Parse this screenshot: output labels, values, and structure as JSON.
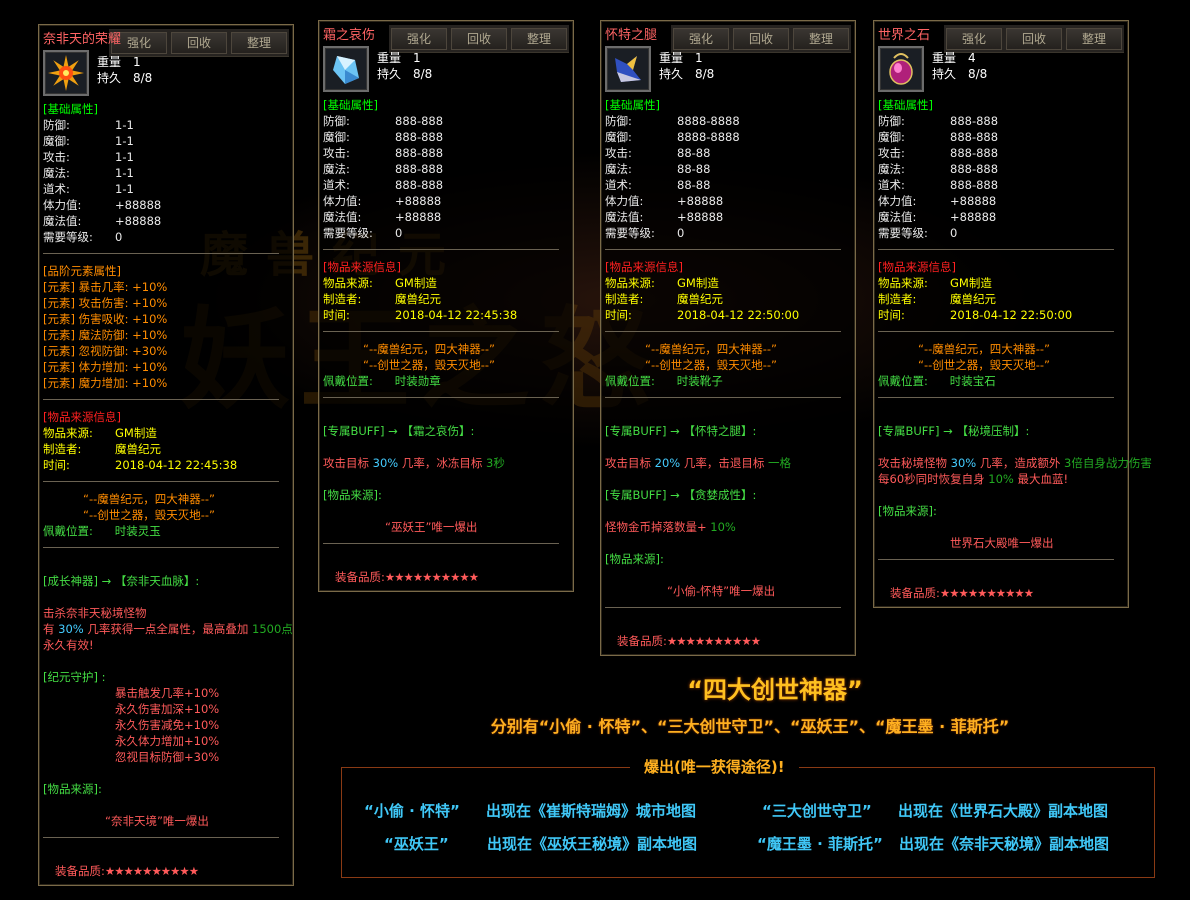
{
  "watermark": {
    "line1": "魔兽纪元",
    "line2": "妖王之怒"
  },
  "colors": {
    "background": "#000000",
    "title": "#ff6464",
    "header_green": "#00ff00",
    "stars": "#ff5a5a",
    "gold": "#ffc020",
    "cyan": "#40c8f8"
  },
  "buttons": [
    "强化",
    "回收",
    "整理"
  ],
  "panels": [
    {
      "title": "奈非天的荣耀",
      "icon": "sun-amulet-icon",
      "weight_label": "重量",
      "weight": "1",
      "durability_label": "持久",
      "durability": "8/8",
      "lines": [
        {
          "seg": [
            [
              "[基础属性]",
              "green"
            ]
          ]
        },
        {
          "kv": [
            "防御:",
            "1-1"
          ]
        },
        {
          "kv": [
            "魔御:",
            "1-1"
          ]
        },
        {
          "kv": [
            "攻击:",
            "1-1"
          ]
        },
        {
          "kv": [
            "魔法:",
            "1-1"
          ]
        },
        {
          "kv": [
            "道术:",
            "1-1"
          ]
        },
        {
          "kv": [
            "体力值:",
            "+88888"
          ]
        },
        {
          "kv": [
            "魔法值:",
            "+88888"
          ]
        },
        {
          "kv": [
            "需要等级:",
            "0"
          ]
        },
        {
          "div": 1
        },
        {
          "seg": [
            [
              "[品阶元素属性]",
              "orange"
            ]
          ]
        },
        {
          "seg": [
            [
              "[元素] 暴击几率: +10%",
              "orange"
            ]
          ]
        },
        {
          "seg": [
            [
              "[元素] 攻击伤害: +10%",
              "orange"
            ]
          ]
        },
        {
          "seg": [
            [
              "[元素] 伤害吸收: +10%",
              "orange"
            ]
          ]
        },
        {
          "seg": [
            [
              "[元素] 魔法防御: +10%",
              "orange"
            ]
          ]
        },
        {
          "seg": [
            [
              "[元素] 忽视防御: +30%",
              "orange"
            ]
          ]
        },
        {
          "seg": [
            [
              "[元素] 体力增加: +10%",
              "orange"
            ]
          ]
        },
        {
          "seg": [
            [
              "[元素] 魔力增加: +10%",
              "orange"
            ]
          ]
        },
        {
          "div": 1
        },
        {
          "seg": [
            [
              "[物品来源信息]",
              "red"
            ]
          ]
        },
        {
          "kvy": [
            "物品来源:",
            "GM制造"
          ]
        },
        {
          "kvy": [
            "制造者:",
            "魔兽纪元"
          ]
        },
        {
          "kvy": [
            "时间:",
            "2018-04-12 22:45:38"
          ]
        },
        {
          "div": 1
        },
        {
          "ind": 40,
          "seg": [
            [
              "“--魔兽纪元，四大神器--”",
              "orange"
            ]
          ]
        },
        {
          "ind": 40,
          "seg": [
            [
              "“--创世之器，毁天灭地--”",
              "orange"
            ]
          ]
        },
        {
          "seg": [
            [
              "佩戴位置:      时装灵玉",
              "lgreen"
            ]
          ]
        },
        {
          "div": 1
        },
        {
          "gap": 1
        },
        {
          "seg": [
            [
              "[成长神器] → 【奈非天血脉】:",
              "lgreen"
            ]
          ]
        },
        {
          "gap": 1
        },
        {
          "seg": [
            [
              "击杀奈非天秘境怪物",
              "pink"
            ]
          ]
        },
        {
          "seg": [
            [
              "有 ",
              "pink"
            ],
            [
              "30%",
              "cyan"
            ],
            [
              " 几率获得一点全属性，最高叠加 ",
              "pink"
            ],
            [
              "1500点",
              "dgreen"
            ]
          ]
        },
        {
          "seg": [
            [
              "永久有效!",
              "pink"
            ]
          ]
        },
        {
          "gap": 1
        },
        {
          "seg": [
            [
              "[纪元守护] :",
              "lgreen"
            ]
          ]
        },
        {
          "ind": 72,
          "seg": [
            [
              "暴击触发几率+10%",
              "pink"
            ]
          ]
        },
        {
          "ind": 72,
          "seg": [
            [
              "永久伤害加深+10%",
              "pink"
            ]
          ]
        },
        {
          "ind": 72,
          "seg": [
            [
              "永久伤害减免+10%",
              "pink"
            ]
          ]
        },
        {
          "ind": 72,
          "seg": [
            [
              "永久体力增加+10%",
              "pink"
            ]
          ]
        },
        {
          "ind": 72,
          "seg": [
            [
              "忽视目标防御+30%",
              "pink"
            ]
          ]
        },
        {
          "gap": 1
        },
        {
          "seg": [
            [
              "[物品来源]:",
              "lgreen"
            ]
          ]
        },
        {
          "gap": 1
        },
        {
          "ind": 62,
          "seg": [
            [
              "“奈非天境”唯一爆出",
              "pink"
            ]
          ]
        },
        {
          "div": 1
        },
        {
          "gap": 1
        }
      ],
      "quality_label": "装备品质:",
      "stars": 10
    },
    {
      "title": "霜之哀伤",
      "icon": "ice-crystal-icon",
      "weight_label": "重量",
      "weight": "1",
      "durability_label": "持久",
      "durability": "8/8",
      "lines": [
        {
          "seg": [
            [
              "[基础属性]",
              "green"
            ]
          ]
        },
        {
          "kv": [
            "防御:",
            "888-888"
          ]
        },
        {
          "kv": [
            "魔御:",
            "888-888"
          ]
        },
        {
          "kv": [
            "攻击:",
            "888-888"
          ]
        },
        {
          "kv": [
            "魔法:",
            "888-888"
          ]
        },
        {
          "kv": [
            "道术:",
            "888-888"
          ]
        },
        {
          "kv": [
            "体力值:",
            "+88888"
          ]
        },
        {
          "kv": [
            "魔法值:",
            "+88888"
          ]
        },
        {
          "kv": [
            "需要等级:",
            "0"
          ]
        },
        {
          "div": 1
        },
        {
          "seg": [
            [
              "[物品来源信息]",
              "red"
            ]
          ]
        },
        {
          "kvy": [
            "物品来源:",
            "GM制造"
          ]
        },
        {
          "kvy": [
            "制造者:",
            "魔兽纪元"
          ]
        },
        {
          "kvy": [
            "时间:",
            "2018-04-12 22:45:38"
          ]
        },
        {
          "div": 1
        },
        {
          "ind": 40,
          "seg": [
            [
              "“--魔兽纪元，四大神器--”",
              "orange"
            ]
          ]
        },
        {
          "ind": 40,
          "seg": [
            [
              "“--创世之器，毁天灭地--”",
              "orange"
            ]
          ]
        },
        {
          "seg": [
            [
              "佩戴位置:      时装勋章",
              "lgreen"
            ]
          ]
        },
        {
          "div": 1
        },
        {
          "gap": 1
        },
        {
          "seg": [
            [
              "[专属BUFF] → 【霜之哀伤】:",
              "lgreen"
            ]
          ]
        },
        {
          "gap": 1
        },
        {
          "seg": [
            [
              "攻击目标 ",
              "pink"
            ],
            [
              "30%",
              "cyan"
            ],
            [
              " 几率，冰冻目标 ",
              "pink"
            ],
            [
              "3秒",
              "dgreen"
            ]
          ]
        },
        {
          "gap": 1
        },
        {
          "seg": [
            [
              "[物品来源]:",
              "lgreen"
            ]
          ]
        },
        {
          "gap": 1
        },
        {
          "ind": 62,
          "seg": [
            [
              "“巫妖王”唯一爆出",
              "pink"
            ]
          ]
        },
        {
          "div": 1
        },
        {
          "gap": 1
        }
      ],
      "quality_label": "装备品质:",
      "stars": 10
    },
    {
      "title": "怀特之腿",
      "icon": "winged-boots-icon",
      "weight_label": "重量",
      "weight": "1",
      "durability_label": "持久",
      "durability": "8/8",
      "lines": [
        {
          "seg": [
            [
              "[基础属性]",
              "green"
            ]
          ]
        },
        {
          "kv": [
            "防御:",
            "8888-8888"
          ]
        },
        {
          "kv": [
            "魔御:",
            "8888-8888"
          ]
        },
        {
          "kv": [
            "攻击:",
            "88-88"
          ]
        },
        {
          "kv": [
            "魔法:",
            "88-88"
          ]
        },
        {
          "kv": [
            "道术:",
            "88-88"
          ]
        },
        {
          "kv": [
            "体力值:",
            "+88888"
          ]
        },
        {
          "kv": [
            "魔法值:",
            "+88888"
          ]
        },
        {
          "kv": [
            "需要等级:",
            "0"
          ]
        },
        {
          "div": 1
        },
        {
          "seg": [
            [
              "[物品来源信息]",
              "red"
            ]
          ]
        },
        {
          "kvy": [
            "物品来源:",
            "GM制造"
          ]
        },
        {
          "kvy": [
            "制造者:",
            "魔兽纪元"
          ]
        },
        {
          "kvy": [
            "时间:",
            "2018-04-12 22:50:00"
          ]
        },
        {
          "div": 1
        },
        {
          "ind": 40,
          "seg": [
            [
              "“--魔兽纪元，四大神器--”",
              "orange"
            ]
          ]
        },
        {
          "ind": 40,
          "seg": [
            [
              "“--创世之器，毁天灭地--”",
              "orange"
            ]
          ]
        },
        {
          "seg": [
            [
              "佩戴位置:      时装靴子",
              "lgreen"
            ]
          ]
        },
        {
          "div": 1
        },
        {
          "gap": 1
        },
        {
          "seg": [
            [
              "[专属BUFF] → 【怀特之腿】:",
              "lgreen"
            ]
          ]
        },
        {
          "gap": 1
        },
        {
          "seg": [
            [
              "攻击目标 ",
              "pink"
            ],
            [
              "20%",
              "cyan"
            ],
            [
              " 几率，击退目标 ",
              "pink"
            ],
            [
              "一格",
              "dgreen"
            ]
          ]
        },
        {
          "gap": 1
        },
        {
          "seg": [
            [
              "[专属BUFF] → 【贪婪成性】:",
              "lgreen"
            ]
          ]
        },
        {
          "gap": 1
        },
        {
          "seg": [
            [
              "怪物金币掉落数量+ ",
              "pink"
            ],
            [
              "10%",
              "dgreen"
            ]
          ]
        },
        {
          "gap": 1
        },
        {
          "seg": [
            [
              "[物品来源]:",
              "lgreen"
            ]
          ]
        },
        {
          "gap": 1
        },
        {
          "ind": 62,
          "seg": [
            [
              "“小偷-怀特”唯一爆出",
              "pink"
            ]
          ]
        },
        {
          "div": 1
        },
        {
          "gap": 1
        }
      ],
      "quality_label": "装备品质:",
      "stars": 10
    },
    {
      "title": "世界之石",
      "icon": "purple-gem-icon",
      "weight_label": "重量",
      "weight": "4",
      "durability_label": "持久",
      "durability": "8/8",
      "lines": [
        {
          "seg": [
            [
              "[基础属性]",
              "green"
            ]
          ]
        },
        {
          "kv": [
            "防御:",
            "888-888"
          ]
        },
        {
          "kv": [
            "魔御:",
            "888-888"
          ]
        },
        {
          "kv": [
            "攻击:",
            "888-888"
          ]
        },
        {
          "kv": [
            "魔法:",
            "888-888"
          ]
        },
        {
          "kv": [
            "道术:",
            "888-888"
          ]
        },
        {
          "kv": [
            "体力值:",
            "+88888"
          ]
        },
        {
          "kv": [
            "魔法值:",
            "+88888"
          ]
        },
        {
          "kv": [
            "需要等级:",
            "0"
          ]
        },
        {
          "div": 1
        },
        {
          "seg": [
            [
              "[物品来源信息]",
              "red"
            ]
          ]
        },
        {
          "kvy": [
            "物品来源:",
            "GM制造"
          ]
        },
        {
          "kvy": [
            "制造者:",
            "魔兽纪元"
          ]
        },
        {
          "kvy": [
            "时间:",
            "2018-04-12 22:50:00"
          ]
        },
        {
          "div": 1
        },
        {
          "ind": 40,
          "seg": [
            [
              "“--魔兽纪元，四大神器--”",
              "orange"
            ]
          ]
        },
        {
          "ind": 40,
          "seg": [
            [
              "“--创世之器，毁天灭地--”",
              "orange"
            ]
          ]
        },
        {
          "seg": [
            [
              "佩戴位置:      时装宝石",
              "lgreen"
            ]
          ]
        },
        {
          "div": 1
        },
        {
          "gap": 1
        },
        {
          "seg": [
            [
              "[专属BUFF] → 【秘境压制】:",
              "lgreen"
            ]
          ]
        },
        {
          "gap": 1
        },
        {
          "seg": [
            [
              "攻击秘境怪物 ",
              "pink"
            ],
            [
              "30%",
              "cyan"
            ],
            [
              " 几率，造成额外 ",
              "pink"
            ],
            [
              "3倍自身战力伤害",
              "dgreen"
            ]
          ]
        },
        {
          "seg": [
            [
              "每60秒同时恢复自身 ",
              "pink"
            ],
            [
              "10%",
              "dgreen"
            ],
            [
              " 最大血蓝!",
              "pink"
            ]
          ]
        },
        {
          "gap": 1
        },
        {
          "seg": [
            [
              "[物品来源]:",
              "lgreen"
            ]
          ]
        },
        {
          "gap": 1
        },
        {
          "ind": 72,
          "seg": [
            [
              "世界石大殿唯一爆出",
              "pink"
            ]
          ]
        },
        {
          "div": 1
        },
        {
          "gap": 1
        }
      ],
      "quality_label": "装备品质:",
      "stars": 10
    }
  ],
  "promo": {
    "title": "“四大创世神器”",
    "subtitle": "分别有“小偷 · 怀特”、“三大创世守卫”、“巫妖王”、“魔王墨 · 菲斯托”",
    "box_legend": "爆出(唯一获得途径)!",
    "drops": [
      {
        "name": "“小偷 · 怀特”",
        "where": "出现在《崔斯特瑞姆》城市地图"
      },
      {
        "name": "“三大创世守卫”",
        "where": "出现在《世界石大殿》副本地图"
      },
      {
        "name": "“巫妖王”",
        "where": "出现在《巫妖王秘境》副本地图"
      },
      {
        "name": "“魔王墨 · 菲斯托”",
        "where": "出现在《奈非天秘境》副本地图"
      }
    ]
  }
}
